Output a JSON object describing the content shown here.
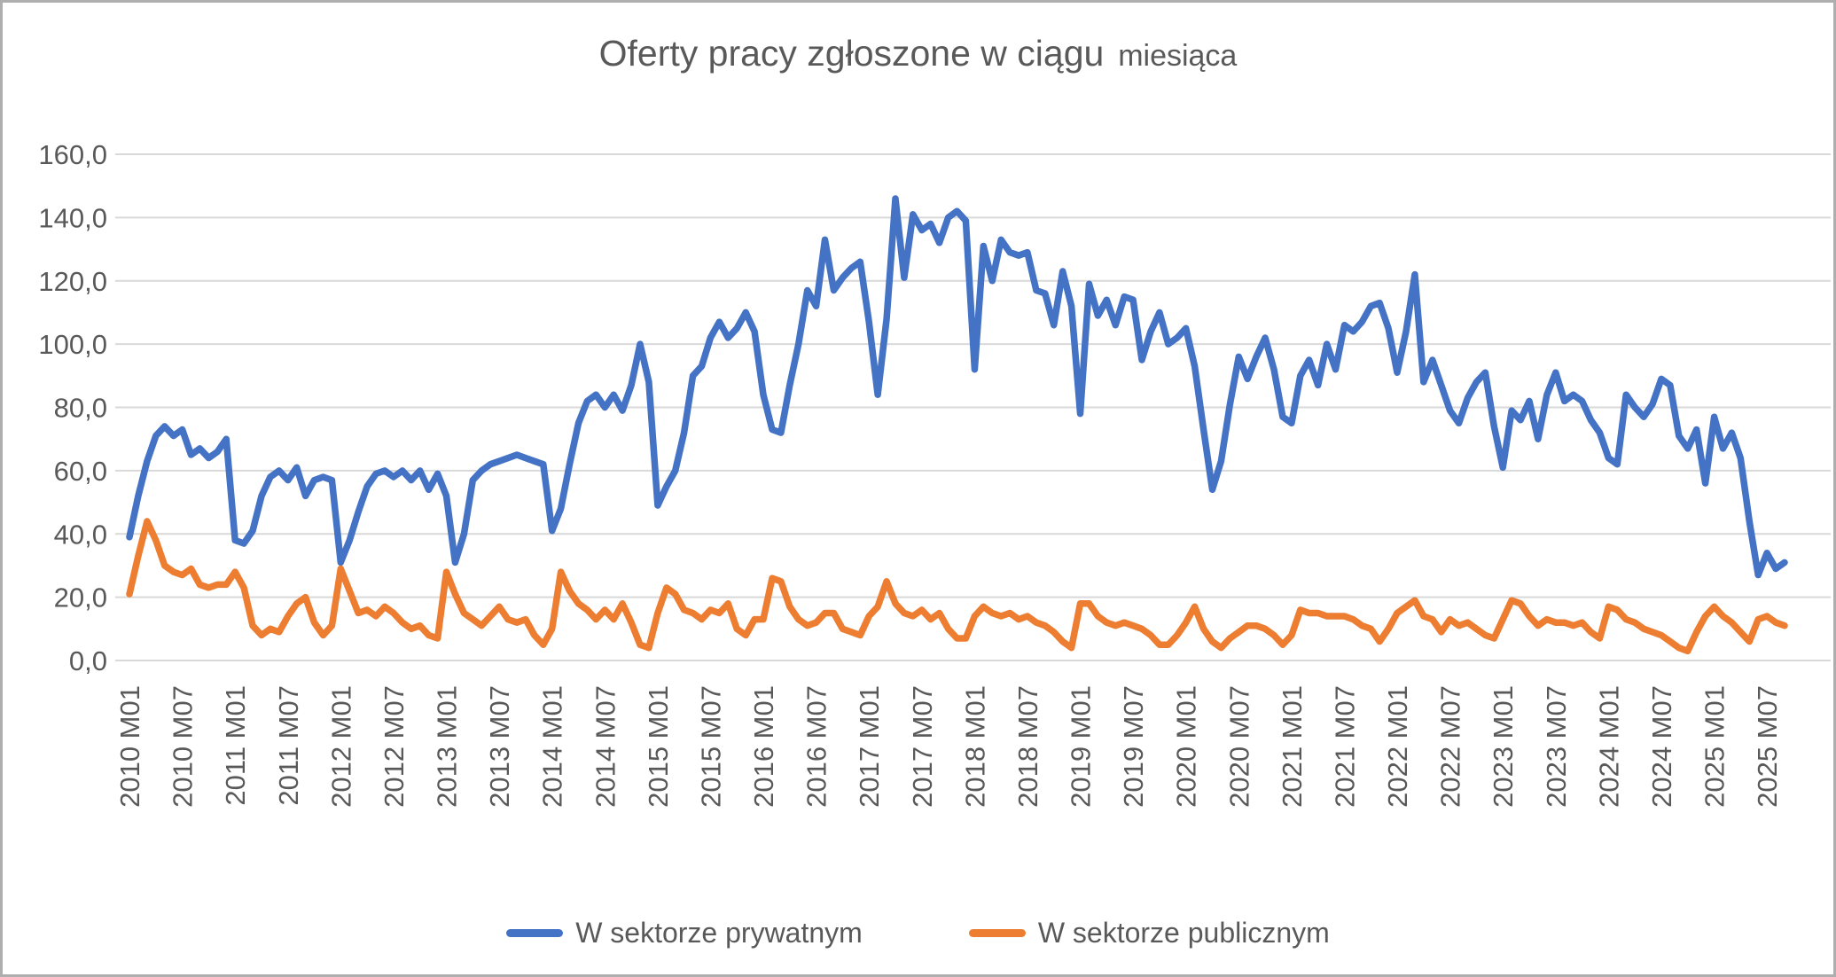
{
  "title": {
    "main": "Oferty pracy zgłoszone w ciągu",
    "small": "miesiąca"
  },
  "legend": {
    "private_label": "W sektorze prywatnym",
    "public_label": "W sektorze publicznym"
  },
  "colors": {
    "private": "#4472C4",
    "public": "#ED7D31",
    "gridline": "#D9D9D9",
    "text": "#595959",
    "background": "#FFFFFF"
  },
  "chart_data": {
    "type": "line",
    "title": "Oferty pracy zgłoszone w ciągu miesiąca",
    "xlabel": "",
    "ylabel": "",
    "ylim": [
      0,
      160
    ],
    "y_step": 20,
    "grid": "horizontal",
    "legend_position": "bottom",
    "y_tick_labels": [
      "0,0",
      "20,0",
      "40,0",
      "60,0",
      "80,0",
      "100,0",
      "120,0",
      "140,0",
      "160,0"
    ],
    "x_start": "2010 M01",
    "x_end": "2025 M09",
    "x_tick_every": 6,
    "x_tick_labels": [
      "2010 M01",
      "2010 M07",
      "2011 M01",
      "2011 M07",
      "2012 M01",
      "2012 M07",
      "2013 M01",
      "2013 M07",
      "2014 M01",
      "2014 M07",
      "2015 M01",
      "2015 M07",
      "2016 M01",
      "2016 M07",
      "2017 M01",
      "2017 M07",
      "2018 M01",
      "2018 M07",
      "2019 M01",
      "2019 M07",
      "2020 M01",
      "2020 M07",
      "2021 M01",
      "2021 M07",
      "2022 M01",
      "2022 M07",
      "2023 M01",
      "2023 M07",
      "2024 M01",
      "2024 M07",
      "2025 M01",
      "2025 M07"
    ],
    "series": [
      {
        "name": "W sektorze prywatnym",
        "color": "#4472C4",
        "values": [
          39,
          52,
          63,
          71,
          74,
          71,
          73,
          65,
          67,
          64,
          66,
          70,
          38,
          37,
          41,
          52,
          58,
          60,
          57,
          61,
          52,
          57,
          58,
          57,
          31,
          38,
          47,
          55,
          59,
          60,
          58,
          60,
          57,
          60,
          54,
          59,
          52,
          31,
          40,
          57,
          60,
          62,
          63,
          64,
          65,
          64,
          63,
          62,
          41,
          48,
          62,
          75,
          82,
          84,
          80,
          84,
          79,
          87,
          100,
          88,
          49,
          55,
          60,
          72,
          90,
          93,
          102,
          107,
          102,
          105,
          110,
          104,
          84,
          73,
          72,
          87,
          100,
          117,
          112,
          133,
          117,
          121,
          124,
          126,
          107,
          84,
          108,
          146,
          121,
          141,
          136,
          138,
          132,
          140,
          142,
          139,
          92,
          131,
          120,
          133,
          129,
          128,
          129,
          117,
          116,
          106,
          123,
          112,
          78,
          119,
          109,
          114,
          106,
          115,
          114,
          95,
          104,
          110,
          100,
          102,
          105,
          93,
          73,
          54,
          63,
          81,
          96,
          89,
          96,
          102,
          92,
          77,
          75,
          90,
          95,
          87,
          100,
          92,
          106,
          104,
          107,
          112,
          113,
          105,
          91,
          104,
          122,
          88,
          95,
          87,
          79,
          75,
          83,
          88,
          91,
          74,
          61,
          79,
          76,
          82,
          70,
          84,
          91,
          82,
          84,
          82,
          76,
          72,
          64,
          62,
          84,
          80,
          77,
          81,
          89,
          87,
          71,
          67,
          73,
          56,
          77,
          67,
          72,
          64,
          44,
          27,
          34,
          29,
          31
        ]
      },
      {
        "name": "W sektorze publicznym",
        "color": "#ED7D31",
        "values": [
          21,
          33,
          44,
          38,
          30,
          28,
          27,
          29,
          24,
          23,
          24,
          24,
          28,
          23,
          11,
          8,
          10,
          9,
          14,
          18,
          20,
          12,
          8,
          11,
          29,
          22,
          15,
          16,
          14,
          17,
          15,
          12,
          10,
          11,
          8,
          7,
          28,
          21,
          15,
          13,
          11,
          14,
          17,
          13,
          12,
          13,
          8,
          5,
          10,
          28,
          22,
          18,
          16,
          13,
          16,
          13,
          18,
          12,
          5,
          4,
          15,
          23,
          21,
          16,
          15,
          13,
          16,
          15,
          18,
          10,
          8,
          13,
          13,
          26,
          25,
          17,
          13,
          11,
          12,
          15,
          15,
          10,
          9,
          8,
          14,
          17,
          25,
          18,
          15,
          14,
          16,
          13,
          15,
          10,
          7,
          7,
          14,
          17,
          15,
          14,
          15,
          13,
          14,
          12,
          11,
          9,
          6,
          4,
          18,
          18,
          14,
          12,
          11,
          12,
          11,
          10,
          8,
          5,
          5,
          8,
          12,
          17,
          10,
          6,
          4,
          7,
          9,
          11,
          11,
          10,
          8,
          5,
          8,
          16,
          15,
          15,
          14,
          14,
          14,
          13,
          11,
          10,
          6,
          10,
          15,
          17,
          19,
          14,
          13,
          9,
          13,
          11,
          12,
          10,
          8,
          7,
          13,
          19,
          18,
          14,
          11,
          13,
          12,
          12,
          11,
          12,
          9,
          7,
          17,
          16,
          13,
          12,
          10,
          9,
          8,
          6,
          4,
          3,
          9,
          14,
          17,
          14,
          12,
          9,
          6,
          13,
          14,
          12,
          11
        ]
      }
    ]
  }
}
